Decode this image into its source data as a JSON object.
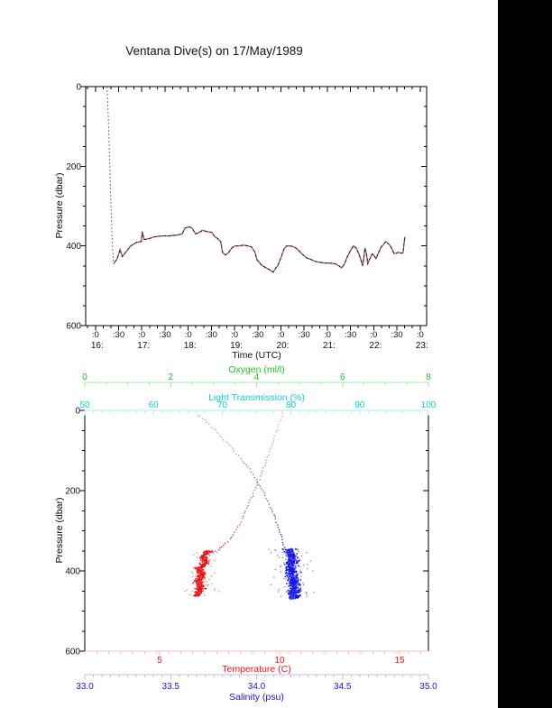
{
  "title": "Ventana Dive(s) on 17/May/1989",
  "page": {
    "background": "#ffffff",
    "right_bar_color": "#000000",
    "frame_color": "#000000"
  },
  "chart_data": [
    {
      "type": "line",
      "title": "Ventana Dive(s) on 17/May/1989",
      "xlabel": "Time (UTC)",
      "ylabel": "Pressure (dbar)",
      "xlim_hours": [
        15.79,
        23.14
      ],
      "ylim": [
        600,
        0
      ],
      "y_ticks": [
        {
          "v": 0,
          "label": "0"
        },
        {
          "v": 200,
          "label": "200"
        },
        {
          "v": 400,
          "label": "400"
        },
        {
          "v": 600,
          "label": "600"
        }
      ],
      "y_minor_step": 50,
      "x_minute_ticks": [
        {
          "t": 16.0,
          "label": ":0"
        },
        {
          "t": 16.5,
          "label": ":30"
        },
        {
          "t": 17.0,
          "label": ":0"
        },
        {
          "t": 17.5,
          "label": ":30"
        },
        {
          "t": 18.0,
          "label": ":0"
        },
        {
          "t": 18.5,
          "label": ":30"
        },
        {
          "t": 19.0,
          "label": ":0"
        },
        {
          "t": 19.5,
          "label": ":30"
        },
        {
          "t": 20.0,
          "label": ":0"
        },
        {
          "t": 20.5,
          "label": ":30"
        },
        {
          "t": 21.0,
          "label": ":0"
        },
        {
          "t": 21.5,
          "label": ":30"
        },
        {
          "t": 22.0,
          "label": ":0"
        },
        {
          "t": 22.5,
          "label": ":30"
        },
        {
          "t": 23.0,
          "label": ":0"
        }
      ],
      "x_hour_ticks": [
        {
          "t": 16,
          "label": "16:"
        },
        {
          "t": 17,
          "label": "17:"
        },
        {
          "t": 18,
          "label": "18:"
        },
        {
          "t": 19,
          "label": "19:"
        },
        {
          "t": 20,
          "label": "20:"
        },
        {
          "t": 21,
          "label": "21:"
        },
        {
          "t": 22,
          "label": "22:"
        },
        {
          "t": 23,
          "label": "23:"
        }
      ],
      "x_minor_step_hours": 0.166667,
      "series": [
        {
          "name": "descent-profile",
          "color": "#c65353",
          "style": "dashed",
          "points": [
            [
              16.25,
              0
            ],
            [
              16.26,
              25
            ],
            [
              16.27,
              52
            ],
            [
              16.29,
              120
            ],
            [
              16.31,
              200
            ],
            [
              16.33,
              280
            ],
            [
              16.35,
              348
            ],
            [
              16.37,
              405
            ],
            [
              16.39,
              445
            ]
          ]
        },
        {
          "name": "bottom-track",
          "color": "#1c0d0d",
          "overlay_color": "#c65353",
          "style": "solid-with-red-dash",
          "points": [
            [
              16.39,
              445
            ],
            [
              16.47,
              432
            ],
            [
              16.53,
              409
            ],
            [
              16.58,
              427
            ],
            [
              16.64,
              418
            ],
            [
              16.76,
              400
            ],
            [
              16.89,
              391
            ],
            [
              16.99,
              389
            ],
            [
              17.01,
              364
            ],
            [
              17.05,
              384
            ],
            [
              17.15,
              382
            ],
            [
              17.28,
              377
            ],
            [
              17.44,
              375
            ],
            [
              17.59,
              375
            ],
            [
              17.75,
              373
            ],
            [
              17.87,
              370
            ],
            [
              17.93,
              355
            ],
            [
              18.02,
              352
            ],
            [
              18.08,
              355
            ],
            [
              18.16,
              370
            ],
            [
              18.24,
              366
            ],
            [
              18.31,
              361
            ],
            [
              18.41,
              364
            ],
            [
              18.51,
              366
            ],
            [
              18.57,
              377
            ],
            [
              18.64,
              382
            ],
            [
              18.7,
              389
            ],
            [
              18.74,
              416
            ],
            [
              18.8,
              423
            ],
            [
              18.86,
              418
            ],
            [
              18.94,
              405
            ],
            [
              19.01,
              400
            ],
            [
              19.09,
              400
            ],
            [
              19.19,
              398
            ],
            [
              19.29,
              400
            ],
            [
              19.36,
              402
            ],
            [
              19.44,
              416
            ],
            [
              19.48,
              434
            ],
            [
              19.58,
              448
            ],
            [
              19.68,
              455
            ],
            [
              19.77,
              461
            ],
            [
              19.83,
              466
            ],
            [
              19.89,
              455
            ],
            [
              19.93,
              450
            ],
            [
              20.01,
              427
            ],
            [
              20.06,
              409
            ],
            [
              20.12,
              400
            ],
            [
              20.2,
              400
            ],
            [
              20.28,
              402
            ],
            [
              20.36,
              409
            ],
            [
              20.45,
              420
            ],
            [
              20.55,
              430
            ],
            [
              20.65,
              434
            ],
            [
              20.74,
              439
            ],
            [
              20.84,
              441
            ],
            [
              20.94,
              443
            ],
            [
              21.06,
              443
            ],
            [
              21.17,
              445
            ],
            [
              21.25,
              450
            ],
            [
              21.31,
              455
            ],
            [
              21.37,
              445
            ],
            [
              21.43,
              427
            ],
            [
              21.48,
              416
            ],
            [
              21.56,
              400
            ],
            [
              21.62,
              405
            ],
            [
              21.68,
              420
            ],
            [
              21.72,
              434
            ],
            [
              21.76,
              450
            ],
            [
              21.79,
              427
            ],
            [
              21.81,
              405
            ],
            [
              21.85,
              425
            ],
            [
              21.87,
              445
            ],
            [
              21.91,
              434
            ],
            [
              21.97,
              420
            ],
            [
              22.01,
              425
            ],
            [
              22.05,
              432
            ],
            [
              22.11,
              416
            ],
            [
              22.16,
              402
            ],
            [
              22.2,
              398
            ],
            [
              22.26,
              389
            ],
            [
              22.3,
              393
            ],
            [
              22.36,
              400
            ],
            [
              22.4,
              409
            ],
            [
              22.44,
              420
            ],
            [
              22.49,
              418
            ],
            [
              22.53,
              416
            ],
            [
              22.59,
              418
            ],
            [
              22.63,
              418
            ],
            [
              22.65,
              398
            ],
            [
              22.67,
              377
            ]
          ]
        }
      ]
    },
    {
      "type": "scatter",
      "ylabel": "Pressure (dbar)",
      "ylim": [
        600,
        0
      ],
      "y_ticks": [
        {
          "v": 0,
          "label": "0"
        },
        {
          "v": 200,
          "label": "200"
        },
        {
          "v": 400,
          "label": "400"
        },
        {
          "v": 600,
          "label": "600"
        }
      ],
      "y_minor_step": 50,
      "axes": [
        {
          "id": "oxygen",
          "label": "Oxygen (ml/l)",
          "color": "#22c422",
          "line_color": "#a4eca4",
          "range": [
            0,
            8
          ],
          "minor": 0.5,
          "ticks": [
            {
              "v": 0,
              "label": "0"
            },
            {
              "v": 2,
              "label": "2"
            },
            {
              "v": 4,
              "label": "4"
            },
            {
              "v": 6,
              "label": "6"
            },
            {
              "v": 8,
              "label": "8"
            }
          ]
        },
        {
          "id": "light",
          "label": "Light Transmission (%)",
          "color": "#11cfcf",
          "line_color": "#aaf2f2",
          "range": [
            50,
            100
          ],
          "minor": 1.25,
          "ticks": [
            {
              "v": 50,
              "label": "50"
            },
            {
              "v": 60,
              "label": "60"
            },
            {
              "v": 70,
              "label": "70"
            },
            {
              "v": 80,
              "label": "80"
            },
            {
              "v": 90,
              "label": "90"
            },
            {
              "v": 100,
              "label": "100"
            }
          ]
        },
        {
          "id": "temperature",
          "label": "Temperature (C)",
          "color": "#f21414",
          "line_color": "#f7bcbc",
          "range": [
            1.88,
            16.2
          ],
          "minor": 0.5,
          "ticks": [
            {
              "v": 5,
              "label": "5"
            },
            {
              "v": 10,
              "label": "10"
            },
            {
              "v": 15,
              "label": "15"
            }
          ]
        },
        {
          "id": "salinity",
          "label": "Salinity (psu)",
          "color": "#1414f2",
          "line_color": "#bcbcf7",
          "range": [
            33.0,
            35.0
          ],
          "minor": 0.05,
          "ticks": [
            {
              "v": 33.0,
              "label": "33.0"
            },
            {
              "v": 33.5,
              "label": "33.5"
            },
            {
              "v": 34.0,
              "label": "34.0"
            },
            {
              "v": 34.5,
              "label": "34.5"
            },
            {
              "v": 35.0,
              "label": "35.0"
            }
          ]
        }
      ],
      "series": [
        {
          "name": "temperature-profile",
          "axis": "temperature",
          "color": "#e81414",
          "pale_color": "#ffb4b4",
          "descent_points": [
            [
              10.11,
              7
            ],
            [
              9.96,
              34
            ],
            [
              9.81,
              63
            ],
            [
              9.62,
              95
            ],
            [
              9.44,
              124
            ],
            [
              9.25,
              156
            ],
            [
              9.06,
              185
            ],
            [
              8.87,
              212
            ],
            [
              8.68,
              237
            ],
            [
              8.5,
              262
            ],
            [
              8.31,
              284
            ],
            [
              8.12,
              305
            ],
            [
              7.93,
              320
            ],
            [
              7.74,
              332
            ],
            [
              7.6,
              341
            ],
            [
              7.45,
              348
            ],
            [
              7.2,
              356
            ],
            [
              7.0,
              365
            ]
          ],
          "cluster": {
            "pressure_range": [
              350,
              463
            ],
            "center_path": [
              [
                350,
                7.05
              ],
              [
                365,
                6.8
              ],
              [
                380,
                6.9
              ],
              [
                395,
                6.65
              ],
              [
                410,
                6.75
              ],
              [
                425,
                6.6
              ],
              [
                440,
                6.72
              ],
              [
                455,
                6.62
              ],
              [
                463,
                6.55
              ]
            ],
            "n_core": 480,
            "sigma": 0.08,
            "n_halo": 70,
            "halo_sigma": 0.3
          }
        },
        {
          "name": "salinity-profile",
          "axis": "salinity",
          "color": "#1414e8",
          "pale_color": "#b4b4ff",
          "descent_points": [
            [
              33.66,
              11
            ],
            [
              33.7,
              25
            ],
            [
              33.74,
              41
            ],
            [
              33.77,
              56
            ],
            [
              33.81,
              72
            ],
            [
              33.85,
              90
            ],
            [
              33.88,
              108
            ],
            [
              33.92,
              126
            ],
            [
              33.96,
              147
            ],
            [
              33.99,
              167
            ],
            [
              34.02,
              190
            ],
            [
              34.05,
              212
            ],
            [
              34.07,
              235
            ],
            [
              34.1,
              259
            ],
            [
              34.12,
              284
            ],
            [
              34.14,
              309
            ],
            [
              34.15,
              329
            ],
            [
              34.17,
              345
            ]
          ],
          "cluster": {
            "pressure_range": [
              345,
              470
            ],
            "center_path": [
              [
                345,
                34.19
              ],
              [
                360,
                34.2
              ],
              [
                375,
                34.21
              ],
              [
                390,
                34.195
              ],
              [
                405,
                34.21
              ],
              [
                420,
                34.215
              ],
              [
                435,
                34.22
              ],
              [
                450,
                34.215
              ],
              [
                470,
                34.22
              ]
            ],
            "n_core": 620,
            "sigma": 0.016,
            "n_halo": 100,
            "halo_sigma": 0.055
          }
        }
      ]
    }
  ]
}
